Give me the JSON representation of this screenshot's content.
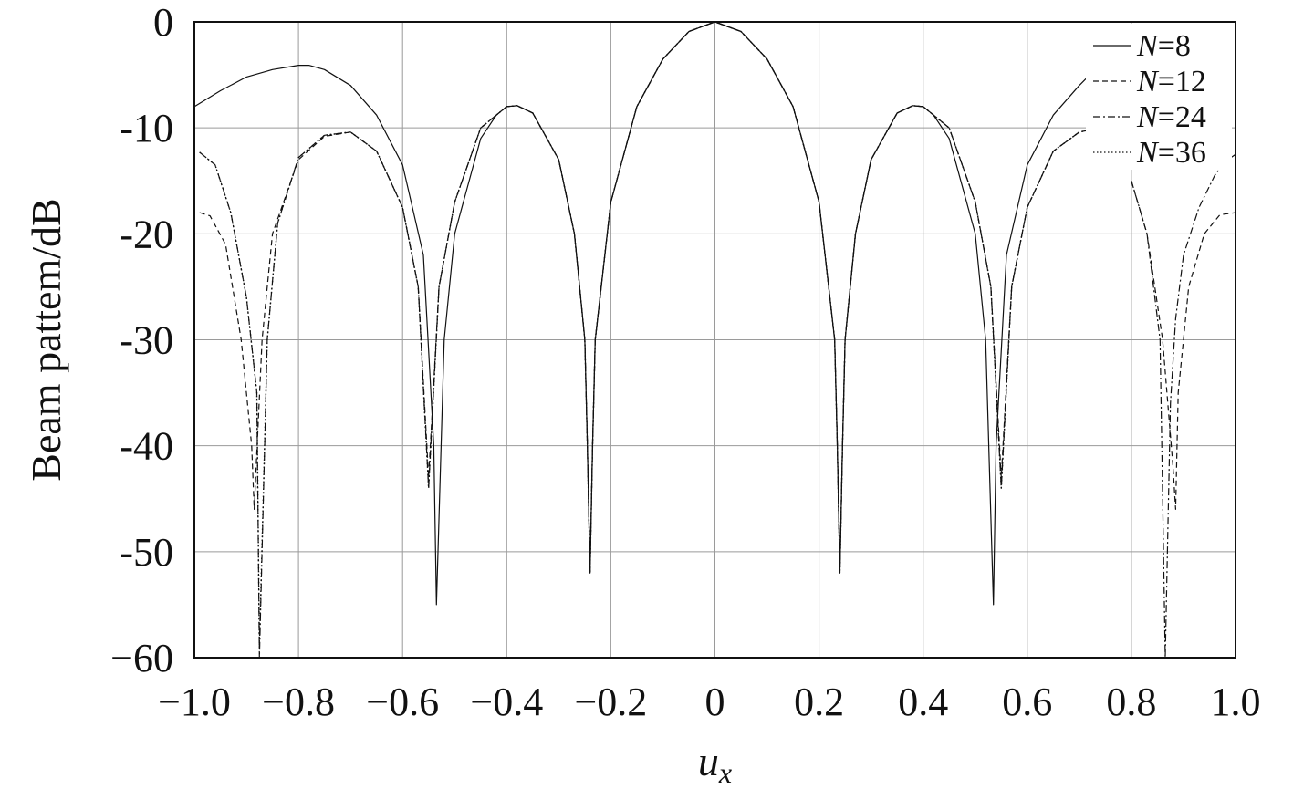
{
  "chart_data": {
    "type": "line",
    "xlabel": "u_x",
    "xlabel_main": "u",
    "xlabel_sub": "x",
    "ylabel": "Beam pattem/dB",
    "xlim": [
      -1.0,
      1.0
    ],
    "ylim": [
      -60,
      0
    ],
    "grid": true,
    "legend_position": "top-right",
    "x_ticks": [
      -1.0,
      -0.8,
      -0.6,
      -0.4,
      -0.2,
      0,
      0.2,
      0.4,
      0.6,
      0.8,
      1.0
    ],
    "x_tick_labels": [
      "−1.0",
      "−0.8",
      "−0.6",
      "−0.4",
      "−0.2",
      "0",
      "0.2",
      "0.4",
      "0.6",
      "0.8",
      "1.0"
    ],
    "y_ticks": [
      0,
      -10,
      -20,
      -30,
      -40,
      -50,
      -60
    ],
    "y_tick_labels": [
      "0",
      "-10",
      "-20",
      "-30",
      "-40",
      "-50",
      "−60"
    ],
    "series": [
      {
        "name": "N=8",
        "legend_italic": "N",
        "legend_rest": "=8",
        "dash": "",
        "width": 1.2,
        "x": [
          -1.0,
          -0.95,
          -0.9,
          -0.85,
          -0.8,
          -0.78,
          -0.75,
          -0.7,
          -0.65,
          -0.6,
          -0.56,
          -0.54,
          -0.535,
          -0.52,
          -0.5,
          -0.45,
          -0.42,
          -0.4,
          -0.38,
          -0.35,
          -0.3,
          -0.27,
          -0.25,
          -0.245,
          -0.24,
          -0.235,
          -0.23,
          -0.2,
          -0.15,
          -0.1,
          -0.05,
          0,
          0.05,
          0.1,
          0.15,
          0.2,
          0.23,
          0.235,
          0.24,
          0.245,
          0.25,
          0.27,
          0.3,
          0.35,
          0.38,
          0.4,
          0.42,
          0.45,
          0.5,
          0.52,
          0.535,
          0.54,
          0.56,
          0.6,
          0.65,
          0.7,
          0.72
        ],
        "y": [
          -8.0,
          -6.5,
          -5.2,
          -4.5,
          -4.1,
          -4.1,
          -4.5,
          -6.0,
          -8.8,
          -13.5,
          -22.0,
          -40.0,
          -55.0,
          -30.0,
          -20.0,
          -11.0,
          -8.8,
          -8.0,
          -7.9,
          -8.6,
          -13.0,
          -20.0,
          -30.0,
          -40.0,
          -52.0,
          -40.0,
          -30.0,
          -17.0,
          -8.0,
          -3.5,
          -0.9,
          0,
          -0.9,
          -3.5,
          -8.0,
          -17.0,
          -30.0,
          -40.0,
          -52.0,
          -40.0,
          -30.0,
          -20.0,
          -13.0,
          -8.6,
          -7.9,
          -8.0,
          -8.8,
          -11.0,
          -20.0,
          -30.0,
          -55.0,
          -40.0,
          -22.0,
          -13.5,
          -8.8,
          -6.0,
          -5.0
        ]
      },
      {
        "name": "N=12",
        "legend_italic": "N",
        "legend_rest": "=12",
        "dash": "6,4",
        "width": 1.2,
        "x": [
          -0.99,
          -0.97,
          -0.94,
          -0.91,
          -0.89,
          -0.885,
          -0.87,
          -0.85,
          -0.8,
          -0.75,
          -0.7,
          -0.65,
          -0.6,
          -0.57,
          -0.55,
          -0.53,
          -0.5,
          -0.45,
          -0.4,
          -0.38,
          -0.35,
          -0.3,
          -0.27,
          -0.25,
          -0.245,
          -0.24,
          -0.235,
          -0.23,
          -0.2,
          -0.15,
          -0.1,
          -0.05,
          0,
          0.05,
          0.1,
          0.15,
          0.2,
          0.23,
          0.235,
          0.24,
          0.245,
          0.25,
          0.27,
          0.3,
          0.35,
          0.38,
          0.4,
          0.45,
          0.5,
          0.53,
          0.55,
          0.57,
          0.6,
          0.65,
          0.7,
          0.72
        ],
        "y": [
          -18.0,
          -18.3,
          -21.0,
          -30.0,
          -40.0,
          -46.0,
          -30.0,
          -20.0,
          -13.0,
          -10.8,
          -10.4,
          -12.2,
          -17.5,
          -25.0,
          -43.0,
          -25.0,
          -17.0,
          -10.0,
          -8.0,
          -7.9,
          -8.6,
          -13.0,
          -20.0,
          -30.0,
          -40.0,
          -52.0,
          -40.0,
          -30.0,
          -17.0,
          -8.0,
          -3.5,
          -0.9,
          0,
          -0.9,
          -3.5,
          -8.0,
          -17.0,
          -30.0,
          -40.0,
          -52.0,
          -40.0,
          -30.0,
          -20.0,
          -13.0,
          -8.6,
          -7.9,
          -8.0,
          -10.0,
          -17.0,
          -25.0,
          -43.0,
          -25.0,
          -17.5,
          -12.2,
          -10.4,
          -10.2
        ]
      },
      {
        "name": "N=24",
        "legend_italic": "N",
        "legend_rest": "=24",
        "dash": "8,3,2,3",
        "width": 1.2,
        "x": [
          -0.99,
          -0.96,
          -0.93,
          -0.9,
          -0.88,
          -0.875,
          -0.86,
          -0.84,
          -0.8,
          -0.75,
          -0.7,
          -0.65,
          -0.6,
          -0.57,
          -0.55,
          -0.53,
          -0.5,
          -0.45,
          -0.4,
          -0.38,
          -0.35,
          -0.3,
          -0.27,
          -0.25,
          -0.245,
          -0.24,
          -0.235,
          -0.23,
          -0.2,
          -0.15,
          -0.1,
          -0.05,
          0,
          0.05,
          0.1,
          0.15,
          0.2,
          0.23,
          0.235,
          0.24,
          0.245,
          0.25,
          0.27,
          0.3,
          0.35,
          0.38,
          0.4,
          0.45,
          0.5,
          0.53,
          0.55,
          0.57,
          0.6,
          0.65,
          0.7,
          0.72
        ],
        "y": [
          -12.3,
          -13.5,
          -18.0,
          -26.0,
          -35.0,
          -60.0,
          -30.0,
          -19.0,
          -12.8,
          -10.7,
          -10.4,
          -12.2,
          -17.5,
          -25.0,
          -44.0,
          -25.0,
          -17.0,
          -10.0,
          -8.0,
          -7.9,
          -8.6,
          -13.0,
          -20.0,
          -30.0,
          -40.0,
          -52.0,
          -40.0,
          -30.0,
          -17.0,
          -8.0,
          -3.5,
          -0.9,
          0,
          -0.9,
          -3.5,
          -8.0,
          -17.0,
          -30.0,
          -40.0,
          -52.0,
          -40.0,
          -30.0,
          -20.0,
          -13.0,
          -8.6,
          -7.9,
          -8.0,
          -10.0,
          -17.0,
          -25.0,
          -44.0,
          -25.0,
          -17.5,
          -12.2,
          -10.4,
          -10.2
        ]
      },
      {
        "name": "N=36",
        "legend_italic": "N",
        "legend_rest": "=36",
        "dash": "1.5,2.5",
        "width": 1.4,
        "x": [
          -0.99,
          -0.96,
          -0.93,
          -0.9,
          -0.88,
          -0.875,
          -0.86,
          -0.84,
          -0.8,
          -0.75,
          -0.7,
          -0.65,
          -0.6,
          -0.57,
          -0.55,
          -0.53,
          -0.5,
          -0.45,
          -0.4,
          -0.38,
          -0.35,
          -0.3,
          -0.27,
          -0.25,
          -0.245,
          -0.24,
          -0.235,
          -0.23,
          -0.2,
          -0.15,
          -0.1,
          -0.05,
          0,
          0.05,
          0.1,
          0.15,
          0.2,
          0.23,
          0.235,
          0.24,
          0.245,
          0.25,
          0.27,
          0.3,
          0.35,
          0.38,
          0.4,
          0.45,
          0.5,
          0.53,
          0.55,
          0.57,
          0.6,
          0.65,
          0.7,
          0.72
        ],
        "y": [
          -12.3,
          -13.5,
          -18.0,
          -26.0,
          -35.0,
          -59.0,
          -30.0,
          -19.0,
          -12.8,
          -10.7,
          -10.4,
          -12.2,
          -17.5,
          -25.0,
          -44.0,
          -25.0,
          -17.0,
          -10.0,
          -8.0,
          -7.9,
          -8.6,
          -13.0,
          -20.0,
          -30.0,
          -40.0,
          -52.0,
          -40.0,
          -30.0,
          -17.0,
          -8.0,
          -3.5,
          -0.9,
          0,
          -0.9,
          -3.5,
          -8.0,
          -17.0,
          -30.0,
          -40.0,
          -52.0,
          -40.0,
          -30.0,
          -20.0,
          -13.0,
          -8.6,
          -7.9,
          -8.0,
          -10.0,
          -17.0,
          -25.0,
          -44.0,
          -25.0,
          -17.5,
          -12.2,
          -10.4,
          -10.2
        ]
      },
      {
        "name": "",
        "dash": "6,4",
        "width": 1.2,
        "x": [
          0.8,
          0.83,
          0.86,
          0.88,
          0.885,
          0.89,
          0.91,
          0.94,
          0.97,
          1.0
        ],
        "y": [
          -15.0,
          -20.0,
          -30.0,
          -42.0,
          -46.0,
          -35.0,
          -25.0,
          -20.0,
          -18.2,
          -18.0
        ]
      },
      {
        "name": "",
        "dash": "8,3,2,3",
        "width": 1.2,
        "x": [
          0.8,
          0.83,
          0.855,
          0.865,
          0.875,
          0.885,
          0.9,
          0.93,
          0.96,
          0.98,
          1.0
        ],
        "y": [
          -15.0,
          -20.0,
          -30.0,
          -60.0,
          -36.0,
          -28.0,
          -22.0,
          -17.5,
          -14.5,
          -13.2,
          -12.5
        ]
      }
    ]
  }
}
